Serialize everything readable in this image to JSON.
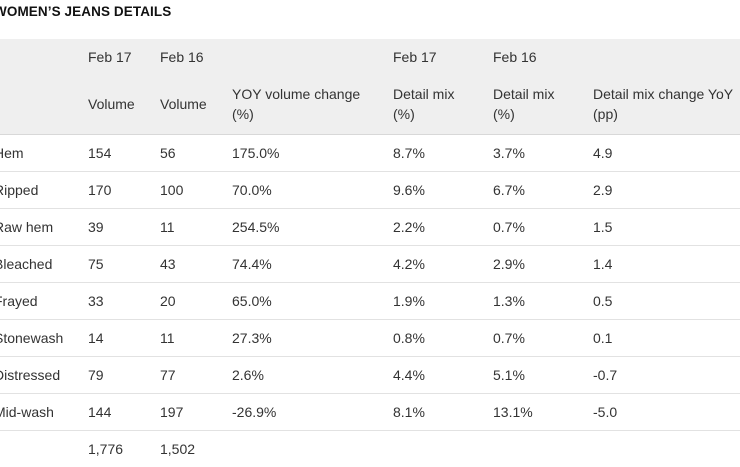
{
  "title": "WOMEN’S JEANS DETAILS",
  "header": {
    "period_row": [
      "",
      "Feb 17",
      "Feb 16",
      "",
      "Feb 17",
      "Feb 16",
      ""
    ],
    "label_row": [
      [
        "",
        ""
      ],
      [
        "Volume",
        ""
      ],
      [
        "Volume",
        ""
      ],
      [
        "YOY volume change",
        "(%)"
      ],
      [
        "Detail mix",
        "(%)"
      ],
      [
        "Detail mix",
        "(%)"
      ],
      [
        "Detail mix change YoY",
        "(pp)"
      ]
    ]
  },
  "rows": [
    [
      "Hem",
      "154",
      "56",
      "175.0%",
      "8.7%",
      "3.7%",
      "4.9"
    ],
    [
      "Ripped",
      "170",
      "100",
      "70.0%",
      "9.6%",
      "6.7%",
      "2.9"
    ],
    [
      "Raw hem",
      "39",
      "11",
      "254.5%",
      "2.2%",
      "0.7%",
      "1.5"
    ],
    [
      "Bleached",
      "75",
      "43",
      "74.4%",
      "4.2%",
      "2.9%",
      "1.4"
    ],
    [
      "Frayed",
      "33",
      "20",
      "65.0%",
      "1.9%",
      "1.3%",
      "0.5"
    ],
    [
      "Stonewash",
      "14",
      "11",
      "27.3%",
      "0.8%",
      "0.7%",
      "0.1"
    ],
    [
      "Distressed",
      "79",
      "77",
      "2.6%",
      "4.4%",
      "5.1%",
      "-0.7"
    ],
    [
      "Mid-wash",
      "144",
      "197",
      "-26.9%",
      "8.1%",
      "13.1%",
      "-5.0"
    ]
  ],
  "total": [
    "",
    "1,776",
    "1,502",
    "",
    "",
    "",
    ""
  ]
}
